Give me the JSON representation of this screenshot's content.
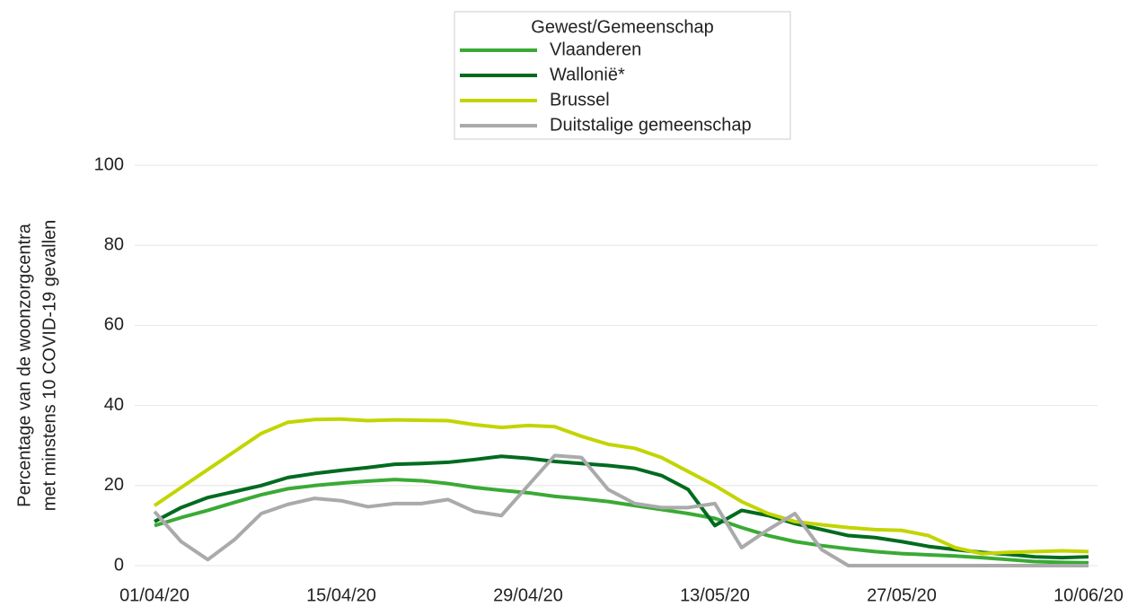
{
  "chart_data": {
    "type": "line",
    "legend_title": "Gewest/Gemeenschap",
    "ylabel": [
      "Percentage van de woonzorgcentra",
      "met minstens 10 COVID-19 gevallen"
    ],
    "x": [
      "01/04/20",
      "03/04/20",
      "05/04/20",
      "07/04/20",
      "09/04/20",
      "11/04/20",
      "13/04/20",
      "15/04/20",
      "17/04/20",
      "19/04/20",
      "21/04/20",
      "23/04/20",
      "25/04/20",
      "27/04/20",
      "29/04/20",
      "01/05/20",
      "03/05/20",
      "05/05/20",
      "07/05/20",
      "09/05/20",
      "11/05/20",
      "13/05/20",
      "15/05/20",
      "17/05/20",
      "19/05/20",
      "21/05/20",
      "23/05/20",
      "25/05/20",
      "27/05/20",
      "29/05/20",
      "31/05/20",
      "02/06/20",
      "04/06/20",
      "06/06/20",
      "08/06/20",
      "10/06/20"
    ],
    "xticks": [
      "01/04/20",
      "15/04/20",
      "29/04/20",
      "13/05/20",
      "27/05/20",
      "10/06/20"
    ],
    "ylim": [
      0,
      100
    ],
    "yticks": [
      0,
      20,
      40,
      60,
      80,
      100
    ],
    "grid": true,
    "legend": "top",
    "series": [
      {
        "name": "Vlaanderen",
        "color": "#3aaa35",
        "values": [
          10,
          12,
          13.8,
          15.8,
          17.7,
          19.2,
          20,
          20.6,
          21.1,
          21.5,
          21.2,
          20.5,
          19.5,
          18.8,
          18.2,
          17.3,
          16.7,
          16,
          15,
          14,
          13,
          11.8,
          9.5,
          7.5,
          6,
          5,
          4.2,
          3.5,
          3,
          2.7,
          2.4,
          2,
          1.5,
          1,
          0.8,
          0.7
        ]
      },
      {
        "name": "Wallonië*",
        "color": "#006b1f",
        "values": [
          11,
          14.5,
          17,
          18.5,
          20,
          22,
          23,
          23.8,
          24.5,
          25.3,
          25.5,
          25.8,
          26.5,
          27.3,
          26.8,
          26,
          25.5,
          25,
          24.3,
          22.5,
          19,
          10,
          13.8,
          12.5,
          10.5,
          9,
          7.5,
          7,
          6,
          4.8,
          4,
          3.3,
          2.8,
          2.2,
          2,
          2.2
        ]
      },
      {
        "name": "Brussel",
        "color": "#c2d500",
        "values": [
          15,
          19.5,
          24,
          28.5,
          33,
          35.8,
          36.5,
          36.6,
          36.2,
          36.4,
          36.3,
          36.2,
          35.2,
          34.5,
          35,
          34.7,
          32.3,
          30.3,
          29.3,
          27,
          23.5,
          20,
          16,
          13,
          11,
          10.2,
          9.5,
          9,
          8.8,
          7.5,
          4.5,
          3,
          3.3,
          3.5,
          3.7,
          3.5
        ]
      },
      {
        "name": "Duitstalige gemeenschap",
        "color": "#aaaaaa",
        "values": [
          13.5,
          6,
          1.5,
          6.5,
          13,
          15.3,
          16.8,
          16.2,
          14.7,
          15.5,
          15.5,
          16.5,
          13.5,
          12.5,
          20,
          27.5,
          27,
          19,
          15.5,
          14.5,
          14.5,
          15.5,
          4.5,
          9,
          13,
          4,
          0,
          0,
          0,
          0,
          0,
          0,
          0,
          0,
          0,
          0
        ]
      }
    ]
  }
}
